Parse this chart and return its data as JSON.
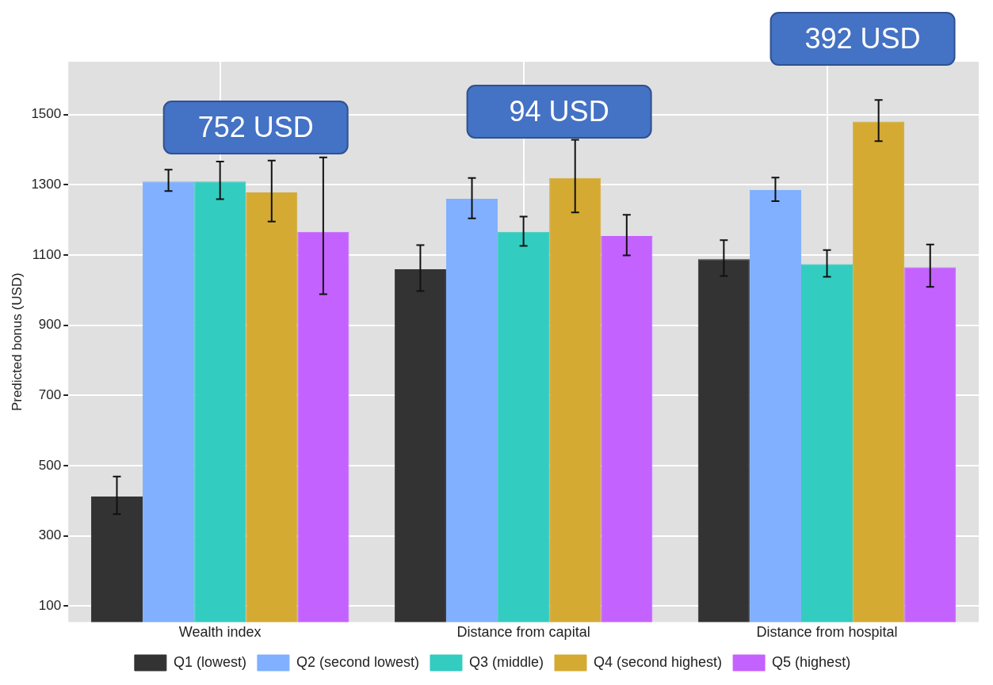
{
  "chart_data": {
    "type": "bar",
    "ylabel": "Predicted bonus (USD)",
    "categories": [
      "Wealth index",
      "Distance from capital",
      "Distance from hospital"
    ],
    "series": [
      {
        "name": "Q1 (lowest)",
        "color": "#333333",
        "values": [
          412,
          1059,
          1088
        ],
        "errors": [
          [
            362,
            469
          ],
          [
            997,
            1128
          ],
          [
            1040,
            1142
          ]
        ]
      },
      {
        "name": "Q2 (second lowest)",
        "color": "#80b0ff",
        "values": [
          1309,
          1260,
          1285
        ],
        "errors": [
          [
            1282,
            1343
          ],
          [
            1204,
            1319
          ],
          [
            1253,
            1320
          ]
        ]
      },
      {
        "name": "Q3 (middle)",
        "color": "#33ccc0",
        "values": [
          1309,
          1166,
          1074
        ],
        "errors": [
          [
            1259,
            1366
          ],
          [
            1126,
            1209
          ],
          [
            1038,
            1114
          ]
        ]
      },
      {
        "name": "Q4 (second highest)",
        "color": "#d4aa33",
        "values": [
          1278,
          1319,
          1480
        ],
        "errors": [
          [
            1195,
            1369
          ],
          [
            1221,
            1428
          ],
          [
            1424,
            1541
          ]
        ]
      },
      {
        "name": "Q5 (highest)",
        "color": "#c462ff",
        "values": [
          1166,
          1154,
          1065
        ],
        "errors": [
          [
            988,
            1378
          ],
          [
            1099,
            1214
          ],
          [
            1009,
            1130
          ]
        ]
      }
    ],
    "ylim": [
      55,
      1650
    ],
    "yticks": [
      100,
      300,
      500,
      700,
      900,
      1100,
      1300,
      1500
    ],
    "grid": true,
    "legend": "bottom",
    "annotations": [
      "752 USD",
      "94 USD",
      "392 USD"
    ]
  }
}
